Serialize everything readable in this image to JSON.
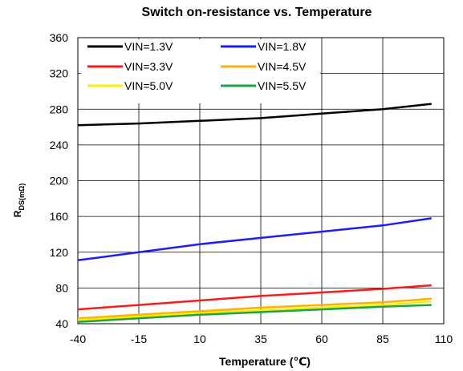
{
  "chart_data": {
    "type": "line",
    "title": "Switch on-resistance vs. Temperature",
    "xlabel": "Temperature (℃)",
    "ylabel_main": "R",
    "ylabel_sub": "DS(mΩ)",
    "xlim": [
      -40,
      110
    ],
    "ylim": [
      40,
      360
    ],
    "xticks": [
      -40,
      -15,
      10,
      35,
      60,
      85,
      110
    ],
    "yticks": [
      40,
      80,
      120,
      160,
      200,
      240,
      280,
      320,
      360
    ],
    "grid": true,
    "legend_position": "top-left",
    "x": [
      -40,
      -15,
      10,
      35,
      60,
      85,
      105
    ],
    "series": [
      {
        "name": "VIN=1.3V",
        "color": "#000000",
        "values": [
          262,
          264,
          267,
          270,
          275,
          280,
          286
        ]
      },
      {
        "name": "VIN=1.8V",
        "color": "#1c1cff",
        "values": [
          111,
          120,
          129,
          136,
          143,
          150,
          158
        ]
      },
      {
        "name": "VIN=3.3V",
        "color": "#ff1a1a",
        "values": [
          56,
          61,
          66,
          71,
          75,
          79,
          83
        ]
      },
      {
        "name": "VIN=4.5V",
        "color": "#ffb000",
        "values": [
          46,
          50,
          54,
          58,
          61,
          64,
          68
        ]
      },
      {
        "name": "VIN=5.0V",
        "color": "#ffee00",
        "values": [
          44,
          48,
          52,
          55,
          58,
          61,
          65
        ]
      },
      {
        "name": "VIN=5.5V",
        "color": "#1aa34a",
        "values": [
          42,
          46,
          50,
          53,
          56,
          59,
          61
        ]
      }
    ]
  }
}
